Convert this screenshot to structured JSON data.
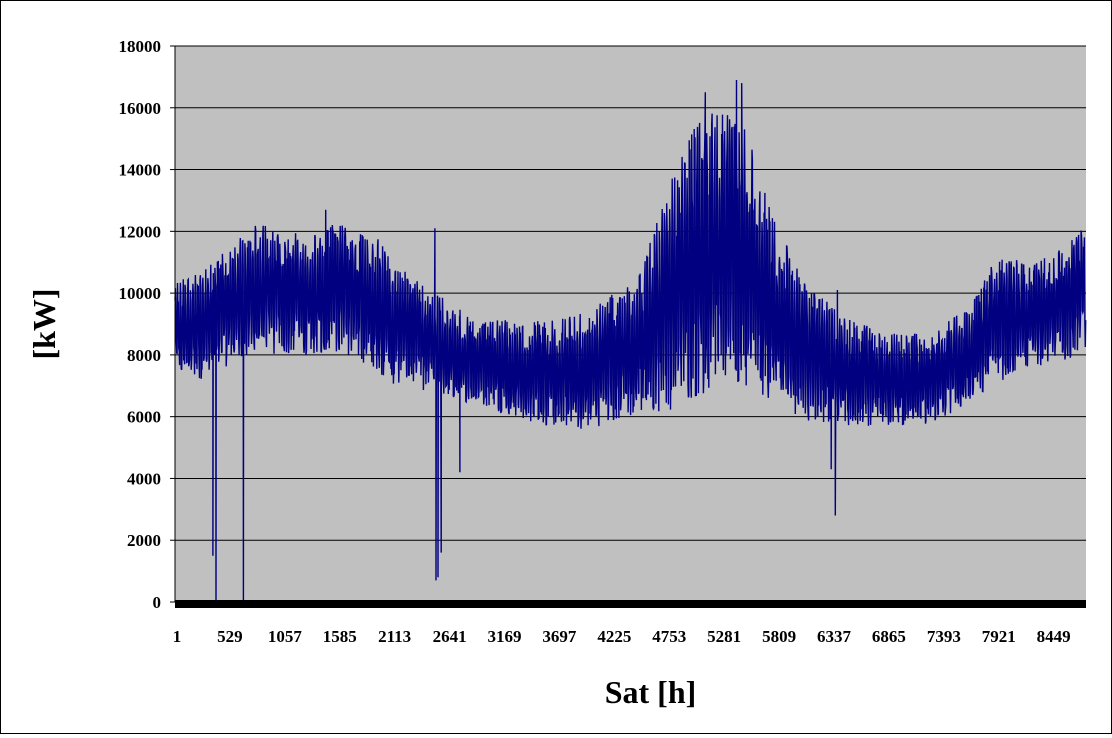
{
  "chart_data": {
    "type": "line",
    "xlabel": "Sat [h]",
    "ylabel": "[kW]",
    "ylim": [
      0,
      18000
    ],
    "xlim": [
      1,
      8760
    ],
    "yticks": [
      0,
      2000,
      4000,
      6000,
      8000,
      10000,
      12000,
      14000,
      16000,
      18000
    ],
    "xtick_labels": [
      "1",
      "529",
      "1057",
      "1585",
      "2113",
      "2641",
      "3169",
      "3697",
      "4225",
      "4753",
      "5281",
      "5809",
      "6337",
      "6865",
      "7393",
      "7921",
      "8449"
    ],
    "grid": true,
    "legend": "none",
    "colors": {
      "plot_background": "#c0c0c0",
      "line": "#000080",
      "grid": "#000000"
    },
    "series": [
      {
        "envelope": {
          "hours": [
            1,
            300,
            529,
            800,
            1057,
            1300,
            1585,
            1900,
            2113,
            2400,
            2641,
            2900,
            3169,
            3450,
            3697,
            3950,
            4225,
            4500,
            4753,
            5000,
            5281,
            5500,
            5809,
            6050,
            6337,
            6600,
            6865,
            7150,
            7393,
            7650,
            7921,
            8200,
            8449,
            8760
          ],
          "lower": [
            7300,
            7200,
            7700,
            8000,
            8000,
            8000,
            8100,
            7600,
            7000,
            6700,
            6600,
            6400,
            6100,
            5800,
            5600,
            5600,
            5800,
            6100,
            6200,
            6600,
            7000,
            6900,
            6400,
            5900,
            5700,
            5700,
            5700,
            5700,
            5900,
            6400,
            7100,
            7600,
            7700,
            8100
          ],
          "upper": [
            10500,
            10800,
            11500,
            12300,
            12000,
            12000,
            12300,
            12000,
            11000,
            10200,
            9800,
            9000,
            9200,
            9100,
            9200,
            9400,
            10000,
            11000,
            13500,
            15500,
            16200,
            15200,
            12000,
            10500,
            9500,
            9000,
            8700,
            8700,
            9000,
            9600,
            11300,
            11000,
            11200,
            12300
          ]
        },
        "spikes": [
          {
            "hour": 365,
            "kw": 1500
          },
          {
            "hour": 395,
            "kw": 0
          },
          {
            "hour": 659,
            "kw": 0
          },
          {
            "hour": 1450,
            "kw": 12700
          },
          {
            "hour": 2500,
            "kw": 12100
          },
          {
            "hour": 2510,
            "kw": 700
          },
          {
            "hour": 2530,
            "kw": 800
          },
          {
            "hour": 2560,
            "kw": 1600
          },
          {
            "hour": 2740,
            "kw": 4200
          },
          {
            "hour": 5100,
            "kw": 16500
          },
          {
            "hour": 5400,
            "kw": 16900
          },
          {
            "hour": 5450,
            "kw": 16800
          },
          {
            "hour": 6310,
            "kw": 4300
          },
          {
            "hour": 6350,
            "kw": 2800
          },
          {
            "hour": 6370,
            "kw": 10100
          }
        ]
      }
    ]
  }
}
